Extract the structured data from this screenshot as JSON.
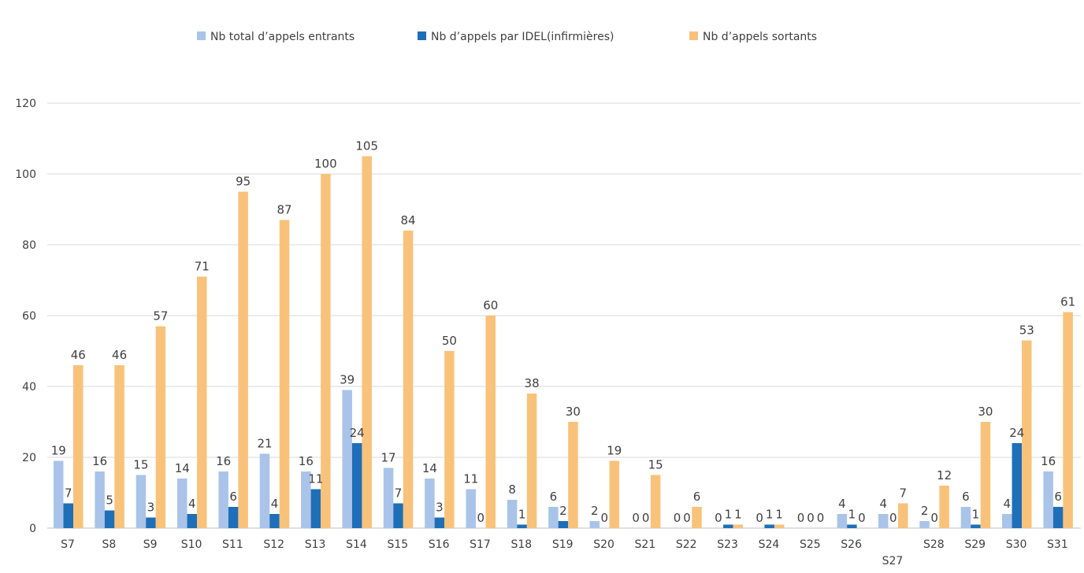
{
  "chart_data": {
    "type": "bar",
    "title": "",
    "xlabel": "",
    "ylabel": "",
    "ylim": [
      0,
      120
    ],
    "y_ticks": [
      0,
      20,
      40,
      60,
      80,
      100,
      120
    ],
    "grid": true,
    "legend_position": "top",
    "categories": [
      "S7",
      "S8",
      "S9",
      "S10",
      "S11",
      "S12",
      "S13",
      "S14",
      "S15",
      "S16",
      "S17",
      "S18",
      "S19",
      "S20",
      "S21",
      "S22",
      "S23",
      "S24",
      "S25",
      "S26",
      "S27",
      "S28",
      "S29",
      "S30",
      "S31"
    ],
    "series": [
      {
        "name": "Nb total d’appels entrants",
        "color": "#A9C4E8",
        "values": [
          19,
          16,
          15,
          14,
          16,
          21,
          16,
          39,
          17,
          14,
          11,
          8,
          6,
          2,
          0,
          0,
          0,
          0,
          0,
          4,
          4,
          2,
          6,
          4,
          16
        ]
      },
      {
        "name": "Nb d’appels par IDEL(infirmières)",
        "color": "#1F6EB8",
        "values": [
          7,
          5,
          3,
          4,
          6,
          4,
          11,
          24,
          7,
          3,
          0,
          1,
          2,
          0,
          0,
          0,
          1,
          1,
          0,
          1,
          0,
          0,
          1,
          24,
          6
        ]
      },
      {
        "name": "Nb d’appels sortants",
        "color": "#F9C27A",
        "values": [
          46,
          46,
          57,
          71,
          95,
          87,
          100,
          105,
          84,
          50,
          60,
          38,
          30,
          19,
          15,
          6,
          1,
          1,
          0,
          0,
          7,
          12,
          30,
          53,
          61
        ]
      }
    ],
    "value_labels": [
      [
        "19",
        "16",
        "15",
        "14",
        "16",
        "21",
        "16",
        "39",
        "17",
        "14",
        "11",
        "8",
        "6",
        "2",
        "0",
        "0",
        "0",
        "0",
        "0",
        "4",
        "4",
        "2",
        "6",
        "4",
        "16"
      ],
      [
        "7",
        "5",
        "3",
        "4",
        "6",
        "4",
        "11",
        "24",
        "7",
        "3",
        "0",
        "1",
        "2",
        "0",
        "0",
        "0",
        "1",
        "1",
        "0",
        "1",
        "0",
        "0",
        "1",
        "24",
        "6"
      ],
      [
        "46",
        "46",
        "57",
        "71",
        "95",
        "87",
        "100",
        "105",
        "84",
        "50",
        "60",
        "38",
        "30",
        "19",
        "15",
        "6",
        "1",
        "1",
        "0",
        "0",
        "7",
        "12",
        "30",
        "53",
        "61"
      ]
    ]
  }
}
